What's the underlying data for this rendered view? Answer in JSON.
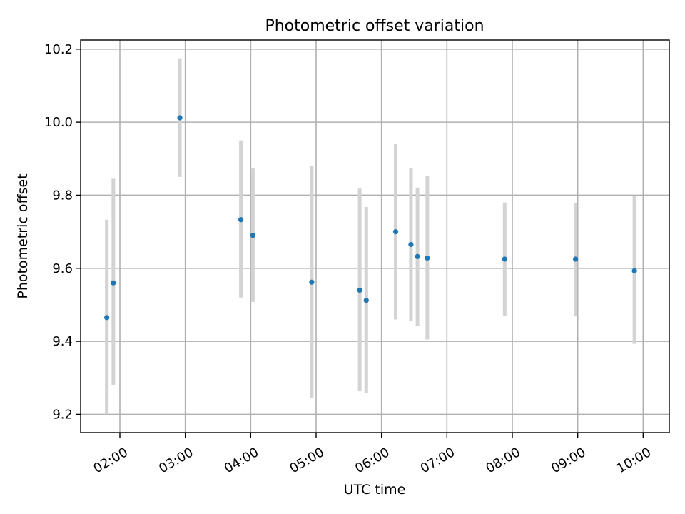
{
  "chart_data": {
    "type": "scatter",
    "title": "Photometric offset variation",
    "xlabel": "UTC time",
    "ylabel": "Photometric offset",
    "xlim": [
      "01:24",
      "10:24"
    ],
    "ylim": [
      9.15,
      10.225
    ],
    "xticks": [
      {
        "time": "02:00",
        "label": "02:00"
      },
      {
        "time": "03:00",
        "label": "03:00"
      },
      {
        "time": "04:00",
        "label": "04:00"
      },
      {
        "time": "05:00",
        "label": "05:00"
      },
      {
        "time": "06:00",
        "label": "06:00"
      },
      {
        "time": "07:00",
        "label": "07:00"
      },
      {
        "time": "08:00",
        "label": "08:00"
      },
      {
        "time": "09:00",
        "label": "09:00"
      },
      {
        "time": "10:00",
        "label": "10:00"
      }
    ],
    "yticks": [
      {
        "value": 9.2,
        "label": "9.2"
      },
      {
        "value": 9.4,
        "label": "9.4"
      },
      {
        "value": 9.6,
        "label": "9.6"
      },
      {
        "value": 9.8,
        "label": "9.8"
      },
      {
        "value": 10.0,
        "label": "10.0"
      },
      {
        "value": 10.2,
        "label": "10.2"
      }
    ],
    "grid": true,
    "points": [
      {
        "time": "01:48",
        "y": 9.465,
        "low": 9.2,
        "high": 9.733
      },
      {
        "time": "01:54",
        "y": 9.56,
        "low": 9.28,
        "high": 9.845
      },
      {
        "time": "02:55",
        "y": 10.012,
        "low": 9.85,
        "high": 10.175
      },
      {
        "time": "03:51",
        "y": 9.733,
        "low": 9.52,
        "high": 9.95
      },
      {
        "time": "04:02",
        "y": 9.69,
        "low": 9.508,
        "high": 9.873
      },
      {
        "time": "04:56",
        "y": 9.562,
        "low": 9.245,
        "high": 9.88
      },
      {
        "time": "05:40",
        "y": 9.54,
        "low": 9.263,
        "high": 9.818
      },
      {
        "time": "05:46",
        "y": 9.512,
        "low": 9.258,
        "high": 9.768
      },
      {
        "time": "06:13",
        "y": 9.7,
        "low": 9.46,
        "high": 9.94
      },
      {
        "time": "06:27",
        "y": 9.665,
        "low": 9.456,
        "high": 9.874
      },
      {
        "time": "06:33",
        "y": 9.632,
        "low": 9.443,
        "high": 9.821
      },
      {
        "time": "06:42",
        "y": 9.628,
        "low": 9.405,
        "high": 9.853
      },
      {
        "time": "07:53",
        "y": 9.625,
        "low": 9.469,
        "high": 9.78
      },
      {
        "time": "08:58",
        "y": 9.625,
        "low": 9.468,
        "high": 9.779
      },
      {
        "time": "09:52",
        "y": 9.593,
        "low": 9.393,
        "high": 9.797
      }
    ]
  }
}
